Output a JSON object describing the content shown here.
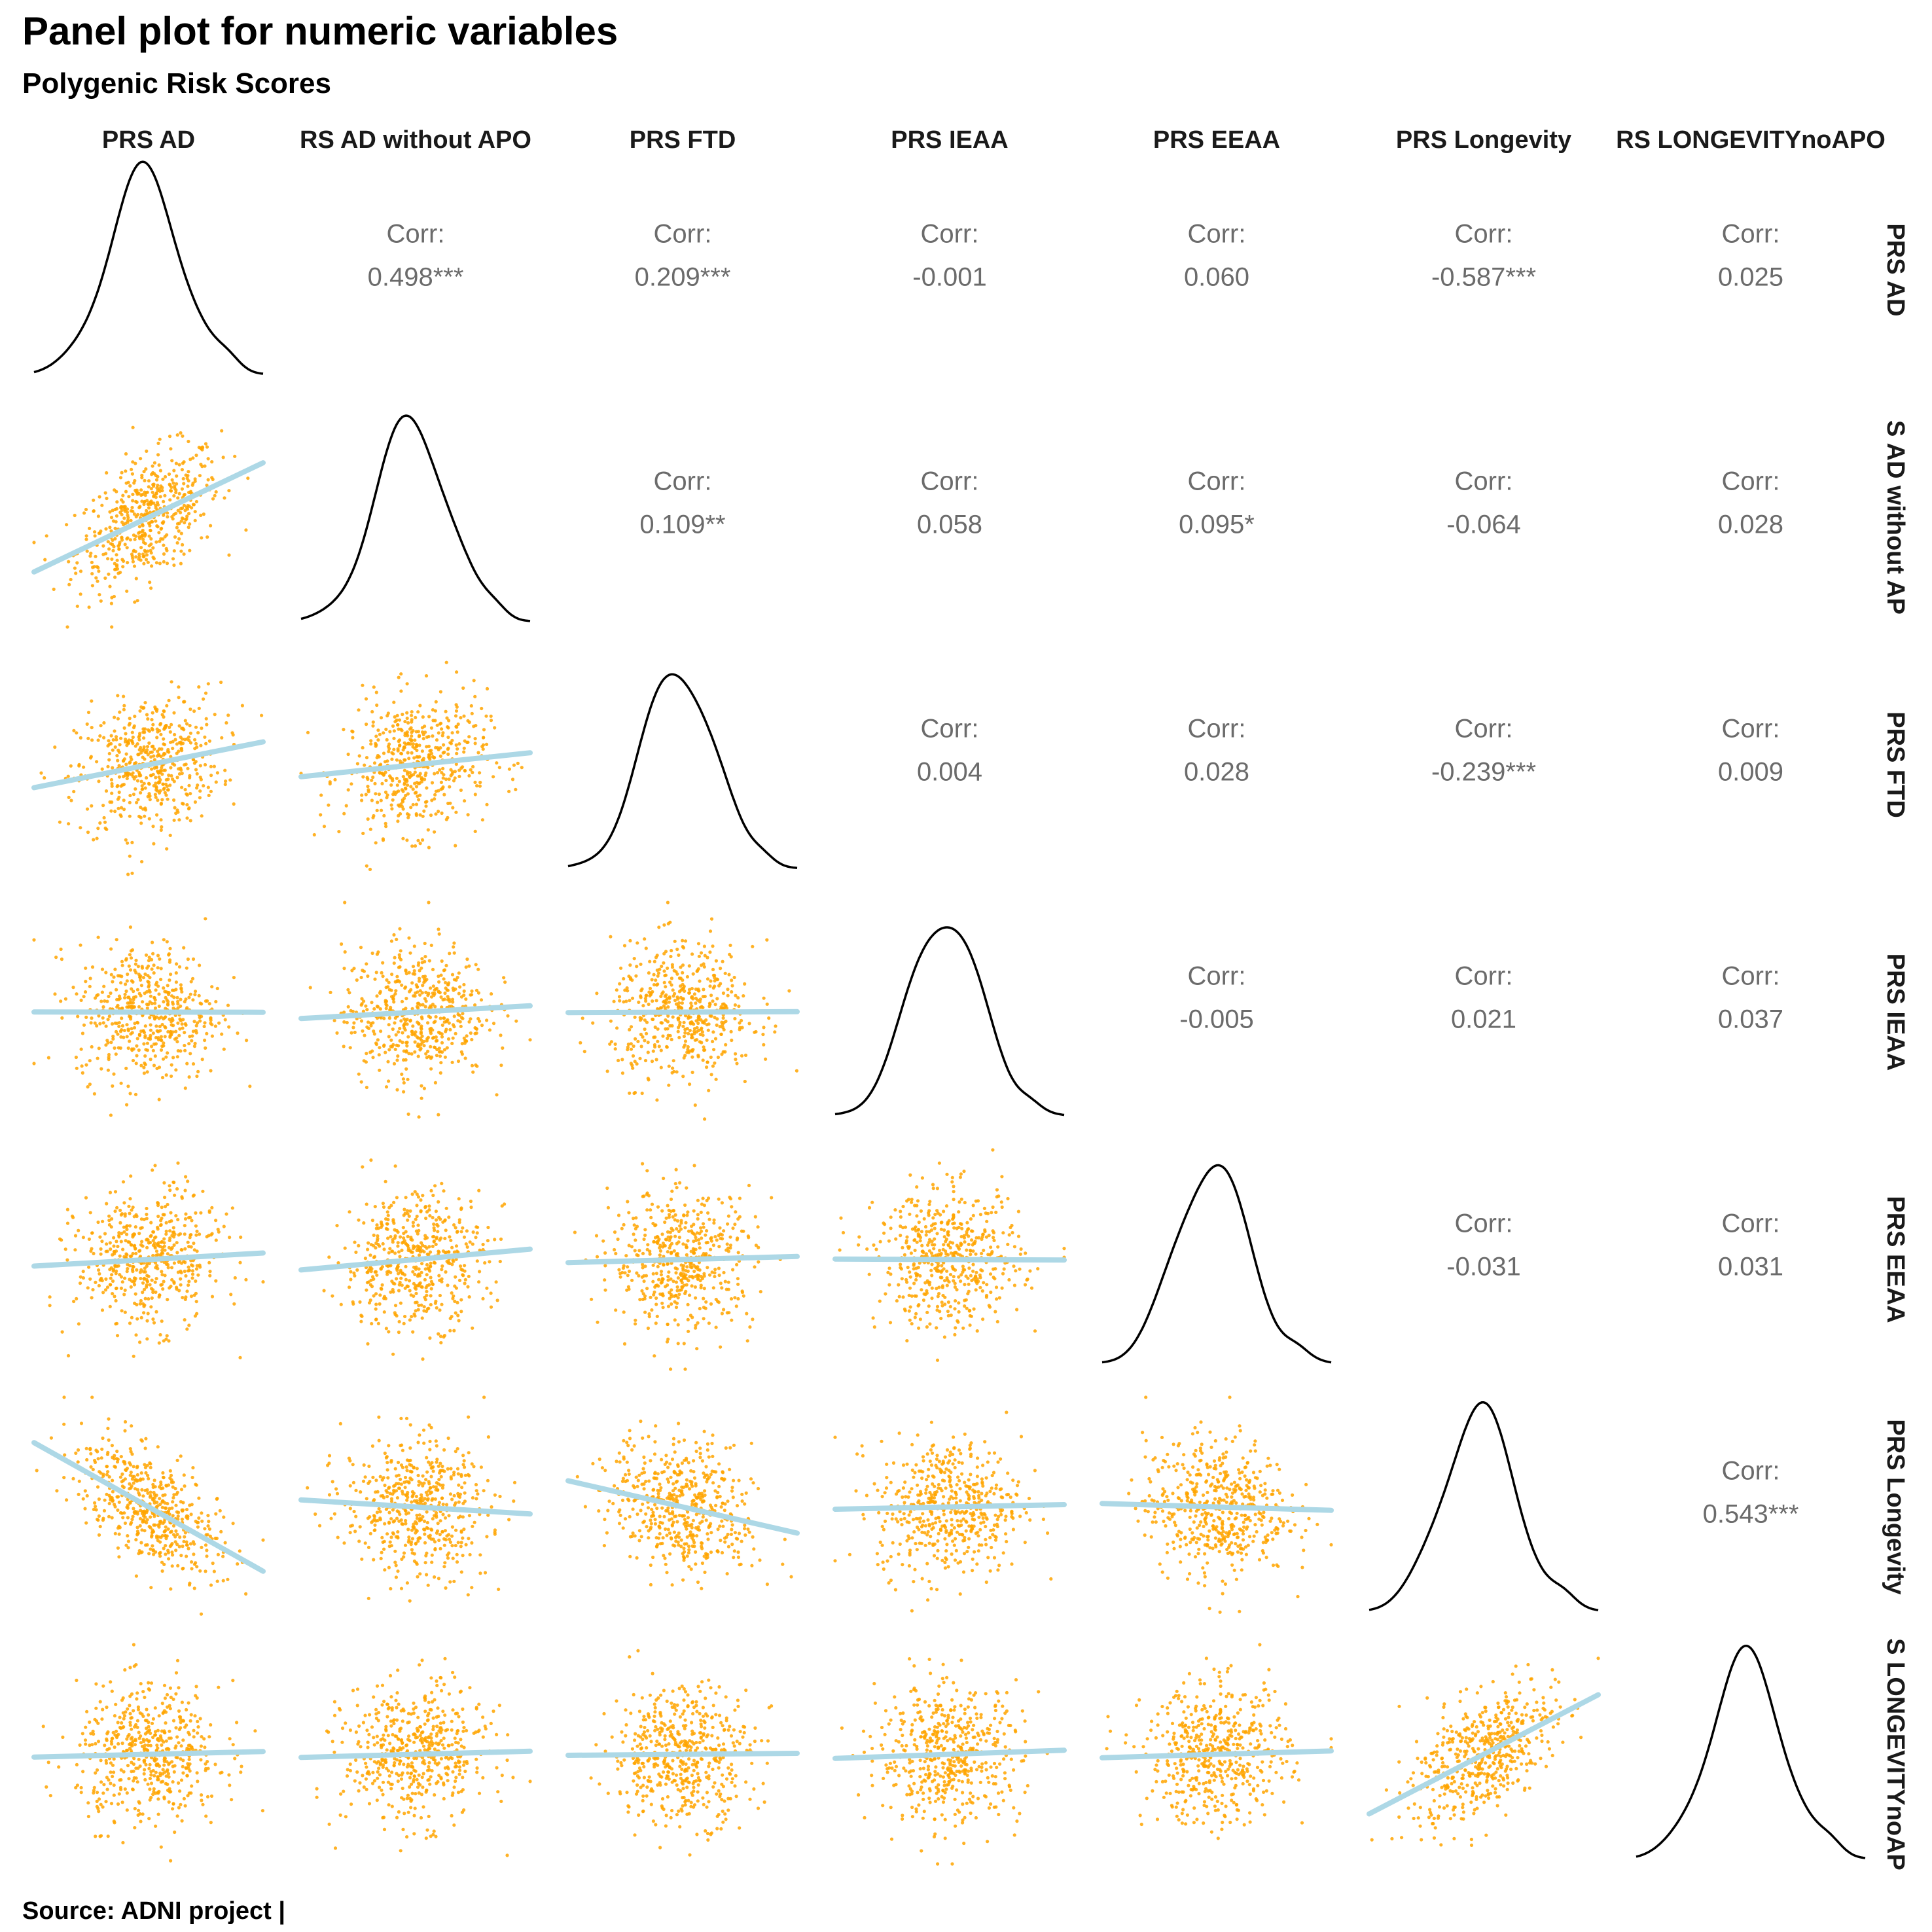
{
  "chart_data": {
    "type": "scatter-matrix",
    "title": "Panel plot for numeric variables",
    "subtitle": "Polygenic Risk Scores",
    "caption": "Source: ADNI project |",
    "variables": [
      "PRS AD",
      "PRS AD without APOE",
      "PRS FTD",
      "PRS IEAA",
      "PRS EEAA",
      "PRS Longevity",
      "PRS LONGEVITYnoAPOE"
    ],
    "corr_label": "Corr:",
    "correlations": [
      {
        "row": 0,
        "col": 1,
        "value": "0.498***"
      },
      {
        "row": 0,
        "col": 2,
        "value": "0.209***"
      },
      {
        "row": 0,
        "col": 3,
        "value": "-0.001"
      },
      {
        "row": 0,
        "col": 4,
        "value": "0.060"
      },
      {
        "row": 0,
        "col": 5,
        "value": "-0.587***"
      },
      {
        "row": 0,
        "col": 6,
        "value": "0.025"
      },
      {
        "row": 1,
        "col": 2,
        "value": "0.109**"
      },
      {
        "row": 1,
        "col": 3,
        "value": "0.058"
      },
      {
        "row": 1,
        "col": 4,
        "value": "0.095*"
      },
      {
        "row": 1,
        "col": 5,
        "value": "-0.064"
      },
      {
        "row": 1,
        "col": 6,
        "value": "0.028"
      },
      {
        "row": 2,
        "col": 3,
        "value": "0.004"
      },
      {
        "row": 2,
        "col": 4,
        "value": "0.028"
      },
      {
        "row": 2,
        "col": 5,
        "value": "-0.239***"
      },
      {
        "row": 2,
        "col": 6,
        "value": "0.009"
      },
      {
        "row": 3,
        "col": 4,
        "value": "-0.005"
      },
      {
        "row": 3,
        "col": 5,
        "value": "0.021"
      },
      {
        "row": 3,
        "col": 6,
        "value": "0.037"
      },
      {
        "row": 4,
        "col": 5,
        "value": "-0.031"
      },
      {
        "row": 4,
        "col": 6,
        "value": "0.031"
      },
      {
        "row": 5,
        "col": 6,
        "value": "0.543***"
      }
    ],
    "lower_panels": "scatter with smooth trend line",
    "diagonal_panels": "density",
    "colors": {
      "points": "#FFA500",
      "smooth": "#ADD8E6",
      "density": "#000000",
      "corr_text": "#6b6b6b"
    }
  }
}
